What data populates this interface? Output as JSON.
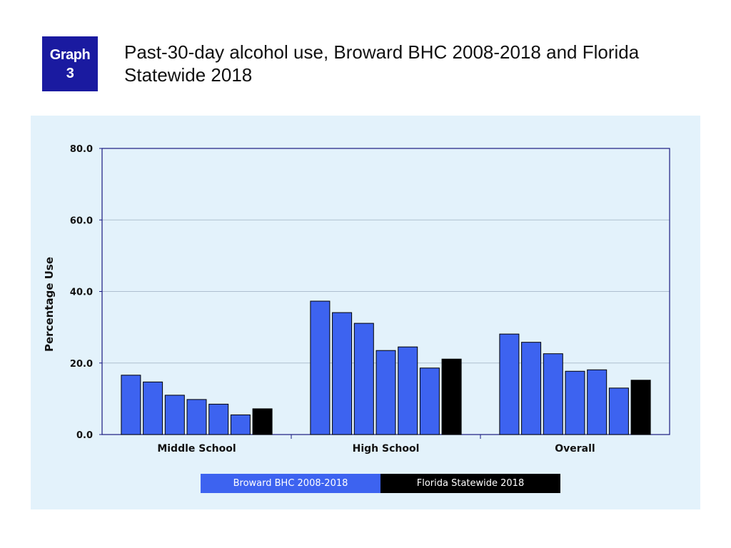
{
  "badge": {
    "line1": "Graph",
    "line2": "3"
  },
  "title": "Past-30-day alcohol use, Broward BHC 2008-2018 and Florida Statewide 2018",
  "colors": {
    "broward": "#3d63f0",
    "florida": "#000000",
    "panel": "#e3f2fb",
    "axis": "#1a1a80",
    "grid": "#aebfd0"
  },
  "legend": [
    {
      "label": "Broward BHC 2008-2018",
      "color": "#3d63f0"
    },
    {
      "label": "Florida Statewide 2018",
      "color": "#000000"
    }
  ],
  "chart_data": {
    "type": "bar",
    "title": "",
    "xlabel": "",
    "ylabel": "Percentage Use",
    "ylim": [
      0,
      80
    ],
    "yticks": [
      "0.0",
      "20.0",
      "40.0",
      "60.0",
      "80.0"
    ],
    "grid": true,
    "legend_position": "bottom",
    "categories": [
      "Middle School",
      "High School",
      "Overall"
    ],
    "groups": [
      {
        "category": "Middle School",
        "broward": [
          16.6,
          14.7,
          11.0,
          9.8,
          8.5,
          5.5
        ],
        "florida": 7.2
      },
      {
        "category": "High School",
        "broward": [
          37.3,
          34.1,
          31.1,
          23.5,
          24.5,
          18.6
        ],
        "florida": 21.1
      },
      {
        "category": "Overall",
        "broward": [
          28.1,
          25.8,
          22.6,
          17.7,
          18.1,
          13.0
        ],
        "florida": 15.2
      }
    ]
  }
}
